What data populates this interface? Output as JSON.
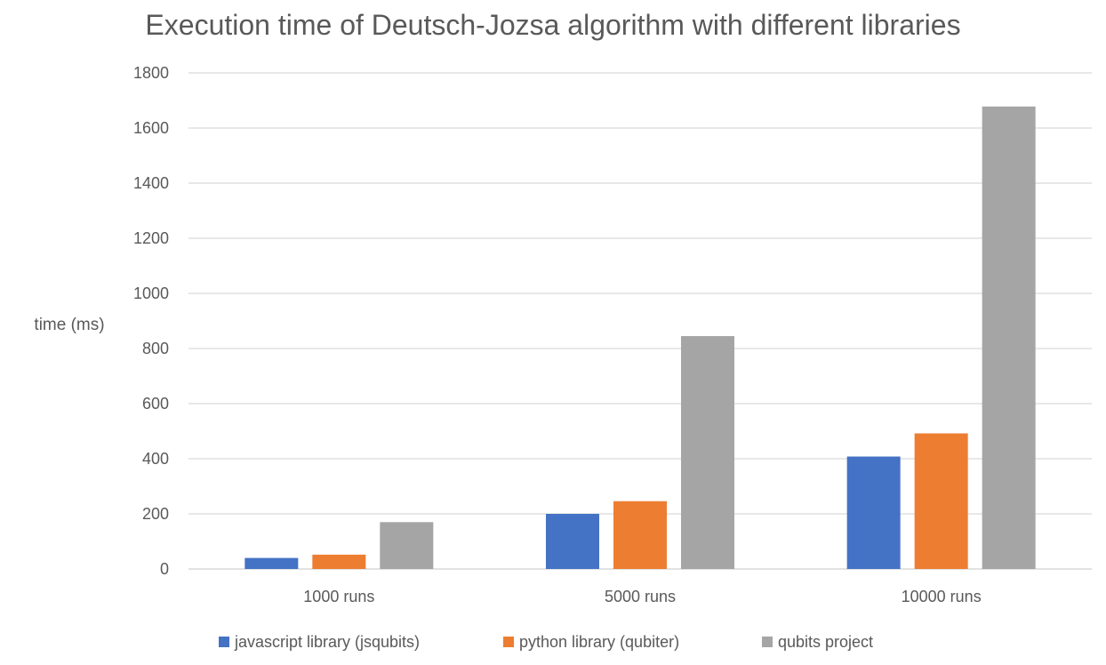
{
  "chart_data": {
    "type": "bar",
    "title": "Execution time of Deutsch-Jozsa algorithm with different libraries",
    "xlabel": "",
    "ylabel": "time (ms)",
    "categories": [
      "1000 runs",
      "5000 runs",
      "10000 runs"
    ],
    "series": [
      {
        "name": "javascript library (jsqubits)",
        "color": "#4472c4",
        "values": [
          40,
          200,
          408
        ]
      },
      {
        "name": "python library (qubiter)",
        "color": "#ed7d31",
        "values": [
          52,
          246,
          492
        ]
      },
      {
        "name": "qubits project",
        "color": "#a5a5a5",
        "values": [
          170,
          845,
          1678
        ]
      }
    ],
    "ylim": [
      0,
      1800
    ],
    "yticks": [
      "0",
      "200",
      "400",
      "600",
      "800",
      "1000",
      "1200",
      "1400",
      "1600",
      "1800"
    ],
    "grid": true,
    "legend_position": "bottom"
  }
}
